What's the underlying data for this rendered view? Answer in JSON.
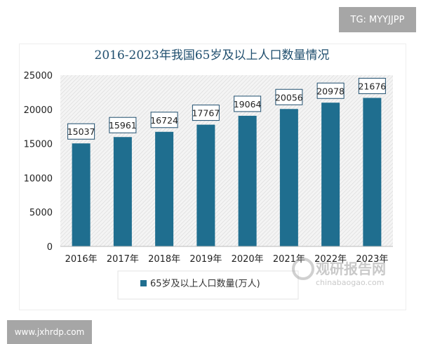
{
  "watermarks": {
    "top": "TG: MYYJJPP",
    "bottom": "www.jxhrdp.com",
    "logo_cn": "观研报告网",
    "logo_en": "chinabaogao.com"
  },
  "colors": {
    "bar": "#1f6e8f",
    "title": "#1f4e6e"
  },
  "chart_data": {
    "type": "bar",
    "title": "2016-2023年我国65岁及以上人口数量情况",
    "categories": [
      "2016年",
      "2017年",
      "2018年",
      "2019年",
      "2020年",
      "2021年",
      "2022年",
      "2023年"
    ],
    "series": [
      {
        "name": "65岁及以上人口数量(万人)",
        "values": [
          15037,
          15961,
          16724,
          17767,
          19064,
          20056,
          20978,
          21676
        ]
      }
    ],
    "ylim": [
      0,
      25000
    ],
    "yticks": [
      0,
      5000,
      10000,
      15000,
      20000,
      25000
    ],
    "legend": "bottom",
    "data_labels": true,
    "grid": false
  }
}
